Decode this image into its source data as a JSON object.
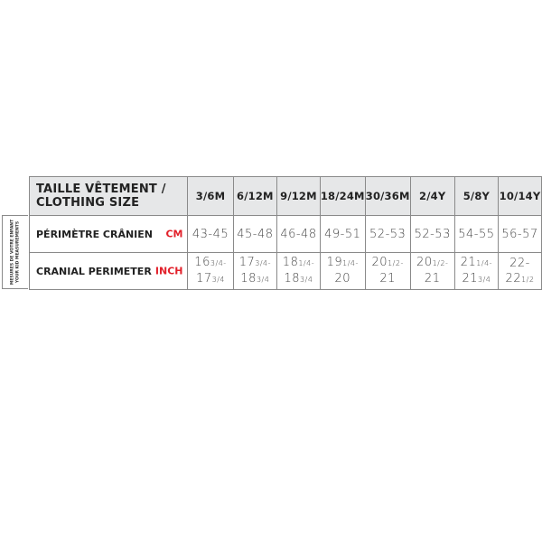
{
  "table": {
    "header_label_line1": "TAILLE VÊTEMENT /",
    "header_label_line2": "CLOTHING SIZE",
    "sizes": [
      "3/6M",
      "6/12M",
      "9/12M",
      "18/24M",
      "30/36M",
      "2/4Y",
      "5/8Y",
      "10/14Y"
    ],
    "side_label_line1": "MESURES DE VOTRE ENFANT",
    "side_label_line2": "YOUR KID MEASUREMENTS",
    "rows": [
      {
        "label": "PÉRIMÈTRE CRÂNIEN",
        "unit": "CM",
        "values": [
          "43-45",
          "45-48",
          "46-48",
          "49-51",
          "52-53",
          "52-53",
          "54-55",
          "56-57"
        ]
      },
      {
        "label": "CRANIAL PERIMETER",
        "unit": "INCH",
        "values": [
          [
            [
              [
                "16",
                "3/4-"
              ]
            ],
            [
              [
                "17",
                "3/4"
              ]
            ]
          ],
          [
            [
              [
                "17",
                "3/4-"
              ]
            ],
            [
              [
                "18",
                "3/4"
              ]
            ]
          ],
          [
            [
              [
                "18",
                "1/4-"
              ]
            ],
            [
              [
                "18",
                "3/4"
              ]
            ]
          ],
          [
            [
              [
                "19",
                "1/4-"
              ]
            ],
            [
              [
                "20",
                ""
              ]
            ]
          ],
          [
            [
              [
                "20",
                "1/2-"
              ]
            ],
            [
              [
                "21",
                ""
              ]
            ]
          ],
          [
            [
              [
                "20",
                "1/2-"
              ]
            ],
            [
              [
                "21",
                ""
              ]
            ]
          ],
          [
            [
              [
                "21",
                "1/4-"
              ]
            ],
            [
              [
                "21",
                "3/4"
              ]
            ]
          ],
          [
            [
              [
                "22-22",
                "1/2"
              ]
            ]
          ]
        ]
      }
    ]
  },
  "colors": {
    "unit": "#e2202a",
    "header_bg": "#e6e7e8",
    "border": "#8a8a8a"
  }
}
